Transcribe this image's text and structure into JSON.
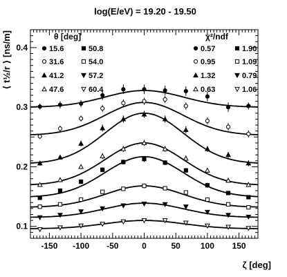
{
  "chart_data": {
    "type": "scatter",
    "title": "log(E/eV) = 19.20 - 19.50",
    "xlabel": "ζ [deg]",
    "ylabel": "⟨ t½/r ⟩ [ns/m]",
    "xlim": [
      -180,
      180
    ],
    "ylim": [
      0.08,
      0.43
    ],
    "x_ticks": [
      -150,
      -100,
      -50,
      0,
      50,
      100,
      150
    ],
    "y_ticks": [
      0.1,
      0.2,
      0.3,
      0.4
    ],
    "grid": false,
    "legend_theta_header": "θ [deg]",
    "legend_chi_header": "χ²/ndf",
    "x": [
      -165,
      -133,
      -100,
      -66,
      -33,
      0,
      33,
      66,
      100,
      133,
      165
    ],
    "series": [
      {
        "theta": "15.6",
        "chi2": "0.57",
        "marker": "filled-circle",
        "peak": 0.328,
        "base": 0.3,
        "values": [
          0.301,
          0.304,
          0.306,
          0.32,
          0.33,
          0.33,
          0.328,
          0.327,
          0.318,
          0.3,
          0.302
        ],
        "errors": [
          0.005,
          0.006,
          0.006,
          0.008,
          0.008,
          0.008,
          0.008,
          0.008,
          0.008,
          0.008,
          0.006
        ]
      },
      {
        "theta": "31.6",
        "chi2": "0.95",
        "marker": "open-circle",
        "peak": 0.308,
        "base": 0.253,
        "values": [
          0.251,
          0.264,
          0.281,
          0.298,
          0.307,
          0.31,
          0.313,
          0.302,
          0.277,
          0.267,
          0.255
        ],
        "errors": [
          0.004,
          0.005,
          0.005,
          0.006,
          0.006,
          0.006,
          0.006,
          0.006,
          0.006,
          0.006,
          0.006
        ]
      },
      {
        "theta": "41.2",
        "chi2": "1.32",
        "marker": "filled-triangle-up",
        "peak": 0.29,
        "base": 0.205,
        "values": [
          0.206,
          0.216,
          0.239,
          0.265,
          0.28,
          0.288,
          0.28,
          0.262,
          0.23,
          0.22,
          0.206
        ],
        "errors": [
          0.004,
          0.004,
          0.005,
          0.006,
          0.006,
          0.006,
          0.006,
          0.006,
          0.005,
          0.005,
          0.005
        ]
      },
      {
        "theta": "47.6",
        "chi2": "0.63",
        "marker": "open-triangle-up",
        "peak": 0.24,
        "base": 0.169,
        "values": [
          0.17,
          0.178,
          0.2,
          0.218,
          0.23,
          0.24,
          0.23,
          0.214,
          0.194,
          0.177,
          0.17
        ],
        "errors": [
          0.003,
          0.004,
          0.004,
          0.005,
          0.005,
          0.005,
          0.005,
          0.005,
          0.004,
          0.004,
          0.004
        ]
      },
      {
        "theta": "50.8",
        "chi2": "1.90",
        "marker": "filled-square",
        "peak": 0.217,
        "base": 0.149,
        "values": [
          0.148,
          0.16,
          0.175,
          0.195,
          0.208,
          0.213,
          0.207,
          0.194,
          0.169,
          0.156,
          0.149
        ],
        "errors": [
          0.003,
          0.003,
          0.004,
          0.004,
          0.004,
          0.005,
          0.004,
          0.004,
          0.004,
          0.003,
          0.003
        ]
      },
      {
        "theta": "54.0",
        "chi2": "1.09",
        "marker": "open-square",
        "peak": 0.168,
        "base": 0.132,
        "values": [
          0.133,
          0.137,
          0.145,
          0.158,
          0.163,
          0.168,
          0.164,
          0.157,
          0.145,
          0.137,
          0.132
        ],
        "errors": [
          0.003,
          0.003,
          0.003,
          0.003,
          0.003,
          0.004,
          0.003,
          0.003,
          0.003,
          0.003,
          0.003
        ]
      },
      {
        "theta": "57.2",
        "chi2": "0.79",
        "marker": "filled-triangle-down",
        "peak": 0.139,
        "base": 0.115,
        "values": [
          0.115,
          0.119,
          0.125,
          0.13,
          0.135,
          0.138,
          0.137,
          0.133,
          0.124,
          0.119,
          0.116
        ],
        "errors": [
          0.002,
          0.002,
          0.002,
          0.002,
          0.002,
          0.003,
          0.002,
          0.002,
          0.002,
          0.002,
          0.002
        ]
      },
      {
        "theta": "60.4",
        "chi2": "1.06",
        "marker": "open-triangle-down",
        "peak": 0.11,
        "base": 0.096,
        "values": [
          0.095,
          0.098,
          0.101,
          0.104,
          0.108,
          0.11,
          0.11,
          0.106,
          0.101,
          0.099,
          0.097
        ],
        "errors": [
          0.002,
          0.002,
          0.002,
          0.002,
          0.002,
          0.002,
          0.002,
          0.002,
          0.002,
          0.002,
          0.002
        ]
      }
    ]
  }
}
